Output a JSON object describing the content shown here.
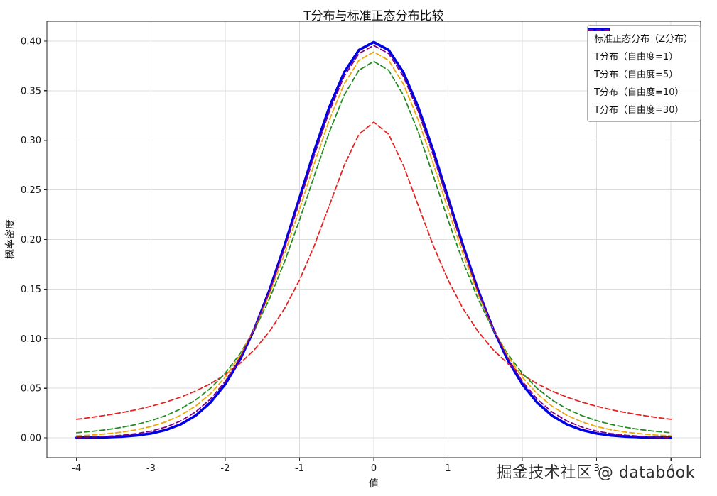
{
  "page": {
    "watermark": "掘金技术社区 @ databook"
  },
  "chart_data": {
    "type": "line",
    "title": "T分布与标准正态分布比较",
    "xlabel": "值",
    "ylabel": "概率密度",
    "xlim": [
      -4.4,
      4.4
    ],
    "ylim": [
      -0.02,
      0.42
    ],
    "grid": true,
    "grid_color": "#dcdcdc",
    "legend_position": "upper right",
    "xtick_values": [
      -4,
      -3,
      -2,
      -1,
      0,
      1,
      2,
      3,
      4
    ],
    "xtick_labels": [
      "-4",
      "-3",
      "-2",
      "-1",
      "0",
      "1",
      "2",
      "3",
      "4"
    ],
    "ytick_values": [
      0,
      0.05,
      0.1,
      0.15,
      0.2,
      0.25,
      0.3,
      0.35,
      0.4
    ],
    "ytick_labels": [
      "0.00",
      "0.05",
      "0.10",
      "0.15",
      "0.20",
      "0.25",
      "0.30",
      "0.35",
      "0.40"
    ],
    "x": [
      -4,
      -3.8,
      -3.6,
      -3.4,
      -3.2,
      -3,
      -2.8,
      -2.6,
      -2.4,
      -2.2,
      -2,
      -1.8,
      -1.6,
      -1.4,
      -1.2,
      -1,
      -0.8,
      -0.6,
      -0.4,
      -0.2,
      0,
      0.2,
      0.4,
      0.6,
      0.8,
      1,
      1.2,
      1.4,
      1.6,
      1.8,
      2,
      2.2,
      2.4,
      2.6,
      2.8,
      3,
      3.2,
      3.4,
      3.6,
      3.8,
      4
    ],
    "series": [
      {
        "name": "标准正态分布（Z分布）",
        "color": "#0000e6",
        "dash": "solid",
        "width": 3.6,
        "values": [
          0.00013,
          0.00029,
          0.00061,
          0.00123,
          0.00238,
          0.00443,
          0.00792,
          0.01358,
          0.02239,
          0.03547,
          0.05399,
          0.07895,
          0.11092,
          0.14973,
          0.19419,
          0.24197,
          0.28969,
          0.33322,
          0.36827,
          0.39104,
          0.39894,
          0.39104,
          0.36827,
          0.33322,
          0.28969,
          0.24197,
          0.19419,
          0.14973,
          0.11092,
          0.07895,
          0.05399,
          0.03547,
          0.02239,
          0.01358,
          0.00792,
          0.00443,
          0.00238,
          0.00123,
          0.00061,
          0.00029,
          0.00013
        ]
      },
      {
        "name": "T分布（自由度=1）",
        "color": "#e62222",
        "dash": "dashed",
        "width": 1.8,
        "values": [
          0.01872,
          0.02062,
          0.0228,
          0.02534,
          0.02832,
          0.03183,
          0.03601,
          0.04102,
          0.04708,
          0.0545,
          0.06366,
          0.07507,
          0.08942,
          0.10753,
          0.13045,
          0.15915,
          0.19409,
          0.23405,
          0.27441,
          0.30607,
          0.31831,
          0.30607,
          0.27441,
          0.23405,
          0.19409,
          0.15915,
          0.13045,
          0.10753,
          0.08942,
          0.07507,
          0.06366,
          0.0545,
          0.04708,
          0.04102,
          0.03601,
          0.03183,
          0.02832,
          0.02534,
          0.0228,
          0.02062,
          0.01872
        ]
      },
      {
        "name": "T分布（自由度=5）",
        "color": "#228b22",
        "dash": "dashed",
        "width": 1.8,
        "values": [
          0.00512,
          0.00646,
          0.00819,
          0.01045,
          0.01341,
          0.01729,
          0.02242,
          0.02918,
          0.03809,
          0.0498,
          0.06509,
          0.0848,
          0.10981,
          0.14075,
          0.17765,
          0.21967,
          0.26448,
          0.30808,
          0.34539,
          0.37064,
          0.37961,
          0.37064,
          0.34539,
          0.30808,
          0.26448,
          0.21967,
          0.17765,
          0.14075,
          0.10981,
          0.0848,
          0.06509,
          0.0498,
          0.03809,
          0.02918,
          0.02242,
          0.01729,
          0.01341,
          0.01045,
          0.00819,
          0.00646,
          0.00512
        ]
      },
      {
        "name": "T分布（自由度=10）",
        "color": "#f0a500",
        "dash": "dashed",
        "width": 1.8,
        "values": [
          0.00203,
          0.00285,
          0.00402,
          0.00568,
          0.00807,
          0.01142,
          0.01613,
          0.02272,
          0.03187,
          0.04437,
          0.06115,
          0.08313,
          0.11107,
          0.14539,
          0.18566,
          0.23036,
          0.27663,
          0.32033,
          0.35658,
          0.38066,
          0.38911,
          0.38066,
          0.35658,
          0.32033,
          0.27663,
          0.23036,
          0.18566,
          0.14539,
          0.11107,
          0.08313,
          0.06115,
          0.04437,
          0.03187,
          0.02272,
          0.01613,
          0.01142,
          0.00807,
          0.00568,
          0.00402,
          0.00285,
          0.00203
        ]
      },
      {
        "name": "T分布（自由度=30）",
        "color": "#800080",
        "dash": "dashed",
        "width": 1.8,
        "values": [
          0.00052,
          0.0009,
          0.00152,
          0.00253,
          0.00417,
          0.00678,
          0.01082,
          0.01696,
          0.026,
          0.03893,
          0.05687,
          0.0807,
          0.11118,
          0.14833,
          0.19129,
          0.238,
          0.28523,
          0.32885,
          0.36432,
          0.38754,
          0.39563,
          0.38754,
          0.36432,
          0.32885,
          0.28523,
          0.238,
          0.19129,
          0.14833,
          0.11118,
          0.0807,
          0.05687,
          0.03893,
          0.026,
          0.01696,
          0.01082,
          0.00678,
          0.00417,
          0.00253,
          0.00152,
          0.0009,
          0.00052
        ]
      }
    ]
  }
}
